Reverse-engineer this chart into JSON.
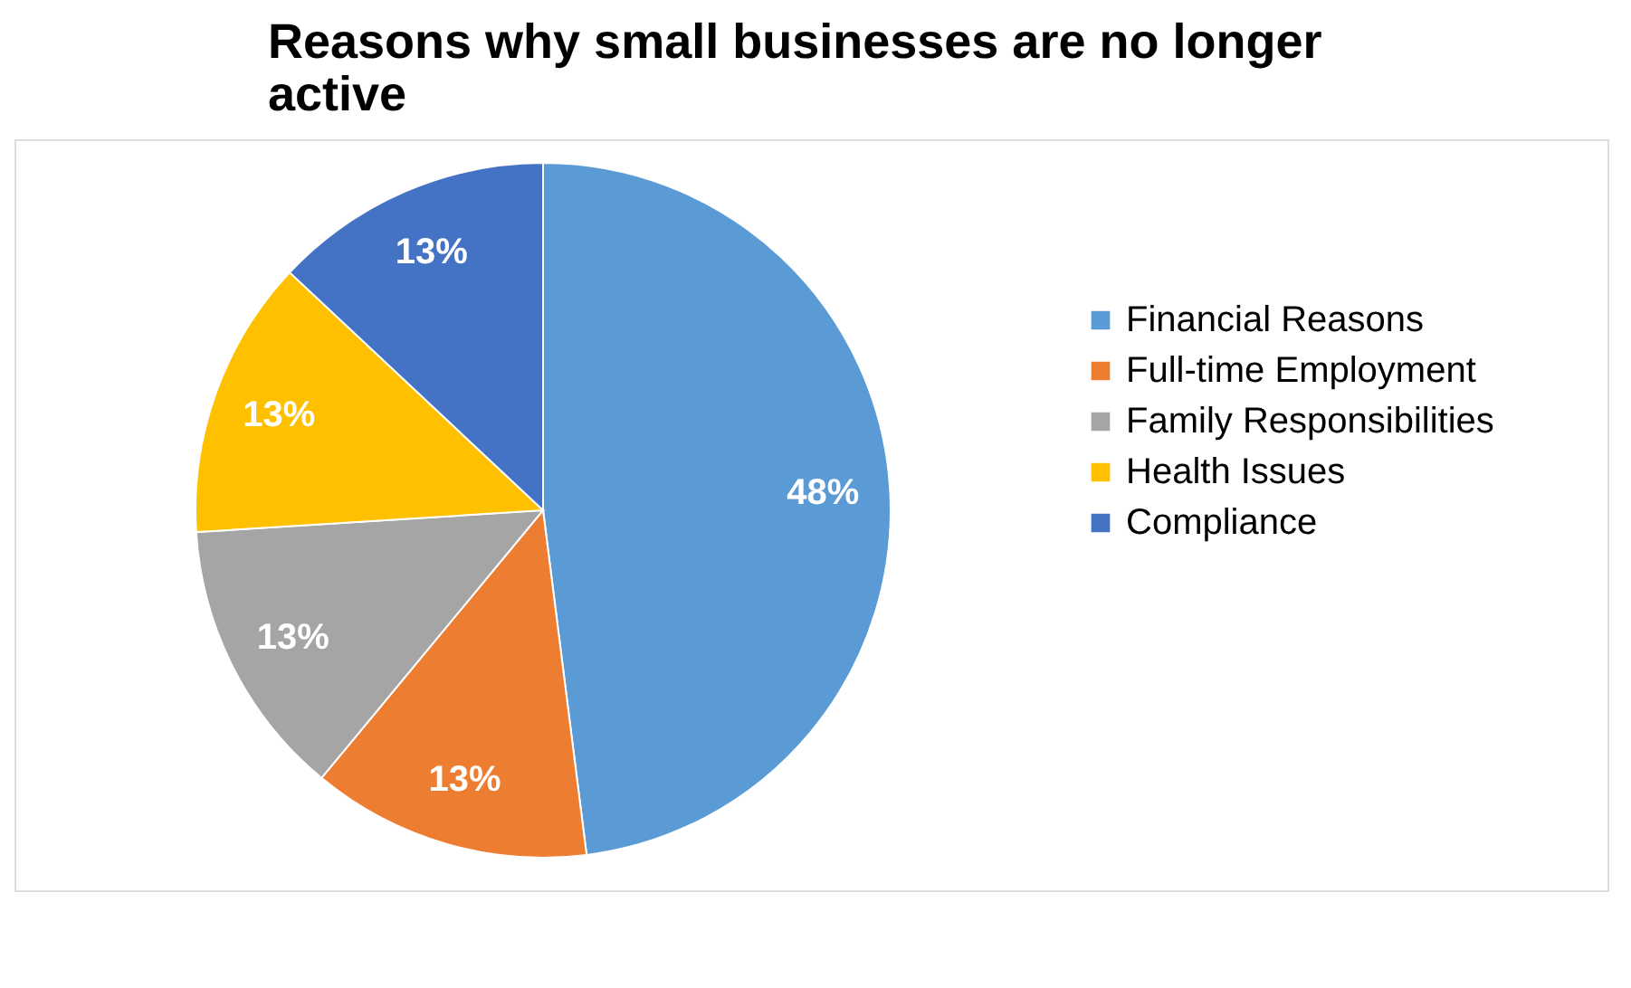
{
  "chart_data": {
    "type": "pie",
    "title": "Reasons why small businesses are no longer active",
    "categories": [
      "Financial Reasons",
      "Full-time Employment",
      "Family Responsibilities",
      "Health Issues",
      "Compliance"
    ],
    "values": [
      48,
      13,
      13,
      13,
      13
    ],
    "value_labels": [
      "48%",
      "13%",
      "13%",
      "13%",
      "13%"
    ],
    "colors": [
      "#5b9bd5",
      "#ed7d31",
      "#a5a5a5",
      "#ffc000",
      "#4472c4"
    ],
    "legend": "right"
  }
}
